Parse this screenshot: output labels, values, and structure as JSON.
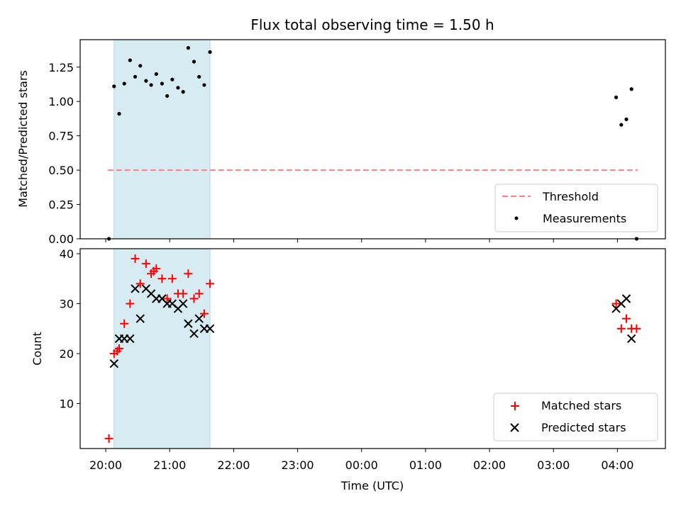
{
  "chart_data": [
    {
      "type": "scatter",
      "title": "Flux total observing time = 1.50 h",
      "xlabel": "",
      "ylabel": "Matched/Predicted stars",
      "ylim": [
        0,
        1.45
      ],
      "yticks": [
        "0.00",
        "0.25",
        "0.50",
        "0.75",
        "1.00",
        "1.25"
      ],
      "shaded_region_x_hours": [
        20.13,
        21.63
      ],
      "threshold": {
        "name": "Threshold",
        "y": 0.5,
        "x_range": [
          20.03,
          28.32
        ],
        "color": "#ff7f7f"
      },
      "series": [
        {
          "name": "Measurements",
          "color": "#000000",
          "x_hours": [
            20.05,
            20.13,
            20.21,
            20.29,
            20.38,
            20.46,
            20.54,
            20.63,
            20.71,
            20.79,
            20.88,
            20.96,
            21.04,
            21.13,
            21.21,
            21.29,
            21.38,
            21.46,
            21.54,
            21.63,
            27.98,
            28.06,
            28.14,
            28.22,
            28.3
          ],
          "values": [
            0.0,
            1.11,
            0.91,
            1.13,
            1.3,
            1.18,
            1.26,
            1.15,
            1.12,
            1.2,
            1.13,
            1.04,
            1.16,
            1.1,
            1.07,
            1.39,
            1.29,
            1.18,
            1.12,
            1.36,
            1.03,
            0.83,
            0.87,
            1.09,
            0.0
          ]
        }
      ],
      "legend": {
        "position": "bottom-right",
        "entries": [
          "Threshold",
          "Measurements"
        ]
      }
    },
    {
      "type": "scatter",
      "title": "",
      "xlabel": "Time (UTC)",
      "ylabel": "Count",
      "ylim": [
        1,
        41
      ],
      "yticks": [
        "10",
        "20",
        "30",
        "40"
      ],
      "xticks": [
        "20:00",
        "21:00",
        "22:00",
        "23:00",
        "00:00",
        "01:00",
        "02:00",
        "03:00",
        "04:00"
      ],
      "xlim_hours": [
        19.6,
        28.75
      ],
      "shaded_region_x_hours": [
        20.13,
        21.63
      ],
      "series": [
        {
          "name": "Matched stars",
          "marker": "plus",
          "color": "#ff0000",
          "x_hours": [
            20.05,
            20.13,
            20.18,
            20.21,
            20.29,
            20.38,
            20.46,
            20.54,
            20.63,
            20.71,
            20.75,
            20.79,
            20.88,
            20.96,
            21.04,
            21.13,
            21.21,
            21.29,
            21.38,
            21.46,
            21.54,
            21.63,
            27.98,
            28.06,
            28.14,
            28.22,
            28.3
          ],
          "values": [
            3,
            20,
            20.5,
            21,
            26,
            30,
            39,
            34,
            38,
            36,
            36.5,
            37,
            35,
            31,
            35,
            32,
            32,
            36,
            31,
            32,
            28,
            34,
            30,
            25,
            27,
            25,
            25
          ]
        },
        {
          "name": "Predicted stars",
          "marker": "x",
          "color": "#000000",
          "x_hours": [
            20.13,
            20.21,
            20.29,
            20.38,
            20.46,
            20.54,
            20.63,
            20.71,
            20.79,
            20.88,
            20.96,
            21.04,
            21.13,
            21.21,
            21.29,
            21.38,
            21.46,
            21.54,
            21.63,
            27.98,
            28.06,
            28.14,
            28.22
          ],
          "values": [
            18,
            23,
            23,
            23,
            33,
            27,
            33,
            32,
            31,
            31,
            30,
            30,
            29,
            30,
            26,
            24,
            27,
            25,
            25,
            29,
            30,
            31,
            23
          ]
        }
      ],
      "legend": {
        "position": "bottom-right",
        "entries": [
          "Matched stars",
          "Predicted stars"
        ]
      }
    }
  ]
}
